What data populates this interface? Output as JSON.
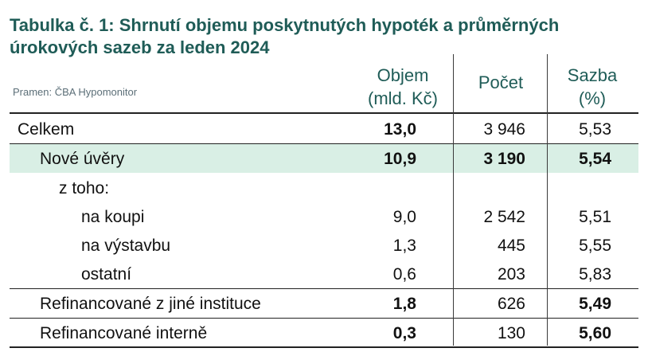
{
  "title": "Tabulka č. 1: Shrnutí objemu poskytnutých hypoték a průměrných úrokových sazeb za leden 2024",
  "source": "Pramen: ČBA Hypomonitor",
  "headers": {
    "volume": [
      "Objem",
      "(mld. Kč)"
    ],
    "count": "Počet",
    "rate": [
      "Sazba",
      "(%)"
    ]
  },
  "rows": [
    {
      "label": "Celkem",
      "volume": "13,0",
      "count": "3 946",
      "rate": "5,53"
    },
    {
      "label": "Nové úvěry",
      "volume": "10,9",
      "count": "3 190",
      "rate": "5,54"
    },
    {
      "label": "z toho:",
      "volume": "",
      "count": "",
      "rate": ""
    },
    {
      "label": "na koupi",
      "volume": "9,0",
      "count": "2 542",
      "rate": "5,51"
    },
    {
      "label": "na výstavbu",
      "volume": "1,3",
      "count": "445",
      "rate": "5,55"
    },
    {
      "label": "ostatní",
      "volume": "0,6",
      "count": "203",
      "rate": "5,83"
    },
    {
      "label": "Refinancované z jiné instituce",
      "volume": "1,8",
      "count": "626",
      "rate": "5,49"
    },
    {
      "label": "Refinancované interně",
      "volume": "0,3",
      "count": "130",
      "rate": "5,60"
    }
  ],
  "colors": {
    "title": "#1f5c57",
    "highlight": "#d9efe5",
    "source": "#5c6f78"
  }
}
